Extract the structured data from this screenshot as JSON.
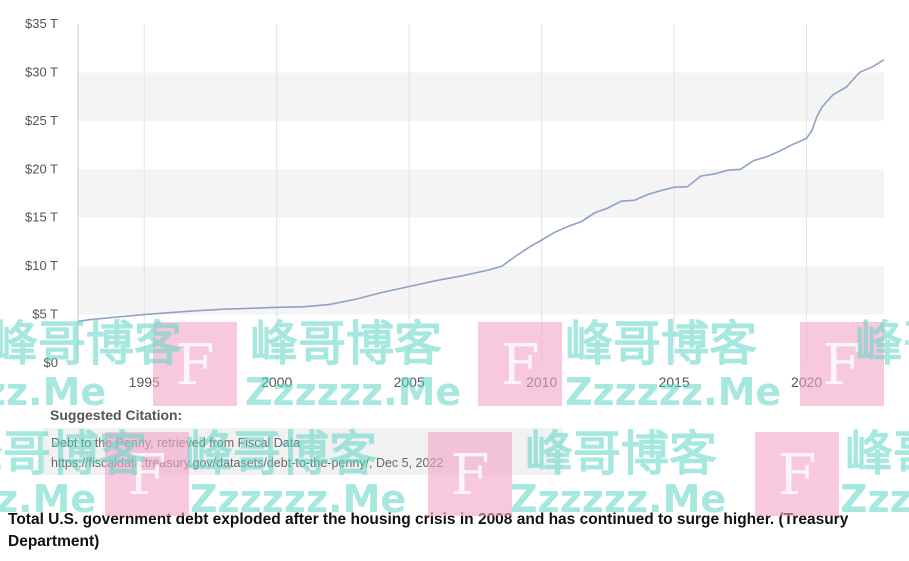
{
  "chart_data": {
    "type": "line",
    "title": "",
    "xlabel": "",
    "ylabel": "",
    "xlim": [
      1992.5,
      2022.92
    ],
    "ylim": [
      0,
      35
    ],
    "y_ticks": [
      0,
      5,
      10,
      15,
      20,
      25,
      30,
      35
    ],
    "y_tick_labels": [
      "$0",
      "$5 T",
      "$10 T",
      "$15 T",
      "$20 T",
      "$25 T",
      "$30 T",
      "$35 T"
    ],
    "x_ticks": [
      1995,
      2000,
      2005,
      2010,
      2015,
      2020
    ],
    "x_tick_labels": [
      "1995",
      "2000",
      "2005",
      "2010",
      "2015",
      "2020"
    ],
    "grid": "vertical lines and alternating horizontal bands",
    "line_color": "#8fa2c4",
    "series": [
      {
        "x": [
          1992.5,
          1993,
          1994,
          1995,
          1996,
          1997,
          1998,
          1999,
          2000,
          2001,
          2002,
          2003,
          2004,
          2005,
          2006,
          2007,
          2008,
          2008.5,
          2008.8,
          2009,
          2009.5,
          2010,
          2010.5,
          2011,
          2011.5,
          2012,
          2012.5,
          2013,
          2013.5,
          2014,
          2014.5,
          2015,
          2015.5,
          2016,
          2016.5,
          2017,
          2017.5,
          2018,
          2018.5,
          2019,
          2019.5,
          2020,
          2020.2,
          2020.4,
          2020.6,
          2021,
          2021.5,
          2022,
          2022.5,
          2022.92
        ],
        "y": [
          4.3,
          4.5,
          4.75,
          5.0,
          5.2,
          5.4,
          5.55,
          5.65,
          5.75,
          5.8,
          6.05,
          6.6,
          7.3,
          7.9,
          8.5,
          9.0,
          9.6,
          10.0,
          10.6,
          11.0,
          11.9,
          12.7,
          13.5,
          14.1,
          14.6,
          15.5,
          16.0,
          16.7,
          16.8,
          17.4,
          17.8,
          18.15,
          18.2,
          19.3,
          19.5,
          19.9,
          20.0,
          20.9,
          21.3,
          21.9,
          22.6,
          23.2,
          24.0,
          25.5,
          26.5,
          27.7,
          28.5,
          30.0,
          30.6,
          31.3
        ]
      }
    ]
  },
  "citation": {
    "title": "Suggested Citation:",
    "line1": "Debt to the Penny, retrieved from Fiscal Data",
    "line2": "https://fiscaldata.treasury.gov/datasets/debt-to-the-penny/, Dec 5, 2022"
  },
  "caption": "Total U.S. government debt exploded after the housing crisis in 2008 and has continued to surge higher. (Treasury Department)",
  "watermark": {
    "text_cn": "峰哥博客",
    "text_en": "Zzzzzz.Me",
    "letter": "F"
  }
}
